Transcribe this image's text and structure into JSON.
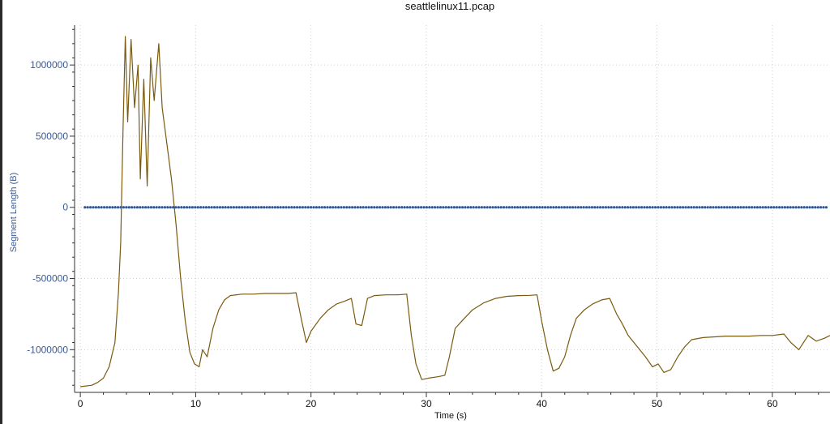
{
  "chart_data": {
    "type": "line",
    "title": "seattlelinux11.pcap",
    "xlabel": "Time (s)",
    "ylabel": "Segment Length (B)",
    "xlim": [
      -0.5,
      65
    ],
    "ylim": [
      -1300000,
      1280000
    ],
    "x_ticks": [
      0,
      10,
      20,
      30,
      40,
      50,
      60
    ],
    "x_tick_labels": [
      "0",
      "10",
      "20",
      "30",
      "40",
      "50",
      "60"
    ],
    "y_ticks": [
      1000000,
      500000,
      0,
      -500000,
      -1000000
    ],
    "y_tick_labels": [
      "1000000",
      "500000",
      "0",
      "-500000",
      "-1000000"
    ],
    "grid": true,
    "colors": {
      "line": "#7a5a0f",
      "dots": "#2f5597",
      "axis_label_y": "#3a5a94"
    },
    "series": [
      {
        "values": [
          [
            0,
            -1260000
          ],
          [
            1,
            -1250000
          ],
          [
            1.5,
            -1230000
          ],
          [
            2,
            -1200000
          ],
          [
            2.5,
            -1120000
          ],
          [
            3,
            -950000
          ],
          [
            3.3,
            -600000
          ],
          [
            3.5,
            -250000
          ],
          [
            3.7,
            550000
          ],
          [
            3.9,
            1200000
          ],
          [
            4.1,
            600000
          ],
          [
            4.4,
            1180000
          ],
          [
            4.7,
            700000
          ],
          [
            5,
            1000000
          ],
          [
            5.2,
            200000
          ],
          [
            5.5,
            900000
          ],
          [
            5.8,
            150000
          ],
          [
            6.1,
            1050000
          ],
          [
            6.4,
            750000
          ],
          [
            6.8,
            1150000
          ],
          [
            7.1,
            700000
          ],
          [
            7.5,
            450000
          ],
          [
            7.9,
            200000
          ],
          [
            8.3,
            -120000
          ],
          [
            8.7,
            -500000
          ],
          [
            9.1,
            -800000
          ],
          [
            9.5,
            -1020000
          ],
          [
            9.9,
            -1100000
          ],
          [
            10.3,
            -1120000
          ],
          [
            10.6,
            -1000000
          ],
          [
            11,
            -1050000
          ],
          [
            11.5,
            -850000
          ],
          [
            12,
            -720000
          ],
          [
            12.5,
            -650000
          ],
          [
            13,
            -620000
          ],
          [
            14,
            -610000
          ],
          [
            15,
            -610000
          ],
          [
            16,
            -605000
          ],
          [
            17,
            -605000
          ],
          [
            18,
            -605000
          ],
          [
            18.7,
            -600000
          ],
          [
            19.2,
            -800000
          ],
          [
            19.6,
            -950000
          ],
          [
            20,
            -870000
          ],
          [
            20.8,
            -780000
          ],
          [
            21.5,
            -720000
          ],
          [
            22.2,
            -680000
          ],
          [
            22.9,
            -660000
          ],
          [
            23.5,
            -640000
          ],
          [
            23.9,
            -820000
          ],
          [
            24.4,
            -830000
          ],
          [
            24.9,
            -640000
          ],
          [
            25.5,
            -620000
          ],
          [
            26.5,
            -615000
          ],
          [
            27.5,
            -615000
          ],
          [
            28.3,
            -610000
          ],
          [
            28.7,
            -900000
          ],
          [
            29.1,
            -1100000
          ],
          [
            29.6,
            -1210000
          ],
          [
            30.2,
            -1200000
          ],
          [
            31,
            -1190000
          ],
          [
            31.6,
            -1180000
          ],
          [
            32,
            -1050000
          ],
          [
            32.5,
            -850000
          ],
          [
            33.3,
            -780000
          ],
          [
            34,
            -720000
          ],
          [
            35,
            -670000
          ],
          [
            36,
            -640000
          ],
          [
            37,
            -625000
          ],
          [
            38,
            -620000
          ],
          [
            39,
            -618000
          ],
          [
            39.6,
            -615000
          ],
          [
            40,
            -800000
          ],
          [
            40.5,
            -1000000
          ],
          [
            41,
            -1150000
          ],
          [
            41.5,
            -1130000
          ],
          [
            42,
            -1050000
          ],
          [
            42.5,
            -900000
          ],
          [
            43,
            -780000
          ],
          [
            43.7,
            -720000
          ],
          [
            44.4,
            -680000
          ],
          [
            45.2,
            -650000
          ],
          [
            45.9,
            -640000
          ],
          [
            46.5,
            -750000
          ],
          [
            47,
            -820000
          ],
          [
            47.5,
            -900000
          ],
          [
            48,
            -950000
          ],
          [
            48.5,
            -1000000
          ],
          [
            49,
            -1050000
          ],
          [
            49.6,
            -1120000
          ],
          [
            50.1,
            -1100000
          ],
          [
            50.6,
            -1160000
          ],
          [
            51.2,
            -1140000
          ],
          [
            51.8,
            -1050000
          ],
          [
            52.4,
            -980000
          ],
          [
            53,
            -930000
          ],
          [
            54,
            -915000
          ],
          [
            55,
            -910000
          ],
          [
            56,
            -905000
          ],
          [
            57,
            -905000
          ],
          [
            58,
            -905000
          ],
          [
            59,
            -900000
          ],
          [
            60,
            -900000
          ],
          [
            61,
            -890000
          ],
          [
            61.6,
            -950000
          ],
          [
            62.3,
            -1000000
          ],
          [
            63.1,
            -900000
          ],
          [
            63.8,
            -940000
          ],
          [
            64.5,
            -920000
          ],
          [
            65,
            -900000
          ]
        ]
      },
      {
        "values": [
          [
            0.4,
            0
          ],
          [
            65,
            0
          ]
        ]
      }
    ]
  }
}
